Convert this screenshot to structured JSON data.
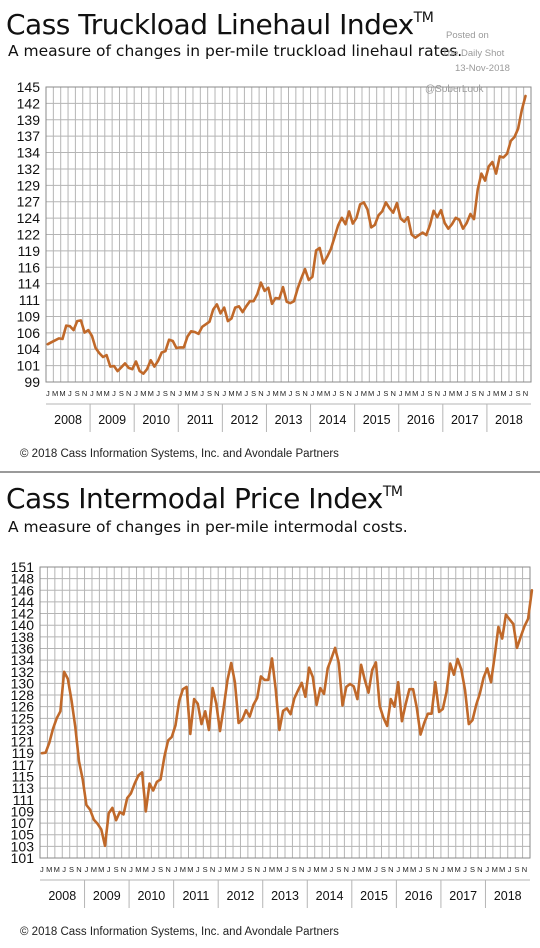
{
  "posted": {
    "line1": "Posted on",
    "line2": "The Daily Shot",
    "line3": "13-Nov-2018",
    "handle": "@SoberLook"
  },
  "colors": {
    "line": "#c0692a",
    "grid": "#b5b5b5",
    "frame": "#8a8a8a"
  },
  "chart_data": [
    {
      "type": "line",
      "title": "Cass Truckload Linehaul Index",
      "title_mark": "TM",
      "subtitle": "A measure of changes in per-mile truckload linehaul rates.",
      "source": "© 2018 Cass Information Systems, Inc. and Avondale Partners",
      "x_month_labels": [
        "J",
        "M",
        "M",
        "J",
        "S",
        "N"
      ],
      "years": [
        "2008",
        "2009",
        "2010",
        "2011",
        "2012",
        "2013",
        "2014",
        "2015",
        "2016",
        "2017",
        "2018"
      ],
      "x_start": "2008-01",
      "x_end": "2018-11",
      "ylim": [
        99,
        145
      ],
      "yticks": [
        "99",
        "101",
        "104",
        "106",
        "109",
        "111",
        "114",
        "116",
        "119",
        "122",
        "124",
        "127",
        "129",
        "132",
        "134",
        "137",
        "139",
        "142",
        "145"
      ],
      "series": [
        {
          "values": [
            104.9,
            105.2,
            105.5,
            105.8,
            105.7,
            107.8,
            107.7,
            107.1,
            108.5,
            108.6,
            106.7,
            107.1,
            106.2,
            104.3,
            103.5,
            102.9,
            103.2,
            101.4,
            101.5,
            100.7,
            101.3,
            101.9,
            101.2,
            101.0,
            102.2,
            100.7,
            100.3,
            101.0,
            102.4,
            101.4,
            102.3,
            103.6,
            103.8,
            105.6,
            105.4,
            104.3,
            104.4,
            104.4,
            106.1,
            106.9,
            106.8,
            106.5,
            107.6,
            108.0,
            108.4,
            110.3,
            111.1,
            109.7,
            110.6,
            108.5,
            108.9,
            110.6,
            110.8,
            109.9,
            110.8,
            111.6,
            111.6,
            112.7,
            114.5,
            113.2,
            113.7,
            111.2,
            112.1,
            112.0,
            113.8,
            111.5,
            111.3,
            111.6,
            113.6,
            115.2,
            116.6,
            114.9,
            115.4,
            119.5,
            119.9,
            117.5,
            118.5,
            119.7,
            121.5,
            123.4,
            124.6,
            123.6,
            125.6,
            123.7,
            124.6,
            126.7,
            127.0,
            125.9,
            123.1,
            123.5,
            125.0,
            125.6,
            127.0,
            126.1,
            125.4,
            126.9,
            124.5,
            124.0,
            124.7,
            122.0,
            121.5,
            121.9,
            122.3,
            121.9,
            123.5,
            125.7,
            124.7,
            125.8,
            123.8,
            122.9,
            123.6,
            124.6,
            124.3,
            122.9,
            123.8,
            125.2,
            124.4,
            129.0,
            131.5,
            130.4,
            132.6,
            133.3,
            131.5,
            134.2,
            134.0,
            134.6,
            136.6,
            137.2,
            138.5,
            141.4,
            143.6
          ]
        }
      ]
    },
    {
      "type": "line",
      "title": "Cass Intermodal Price Index",
      "title_mark": "TM",
      "subtitle": "A measure of changes in per-mile intermodal costs.",
      "source": "© 2018 Cass Information Systems, Inc. and Avondale Partners",
      "x_month_labels": [
        "J",
        "M",
        "M",
        "J",
        "S",
        "N"
      ],
      "years": [
        "2008",
        "2009",
        "2010",
        "2011",
        "2012",
        "2013",
        "2014",
        "2015",
        "2016",
        "2017",
        "2018"
      ],
      "x_start": "2008-01",
      "x_end": "2018-11",
      "ylim": [
        101,
        151
      ],
      "yticks": [
        "101",
        "103",
        "105",
        "107",
        "109",
        "111",
        "113",
        "115",
        "117",
        "119",
        "121",
        "123",
        "125",
        "126",
        "128",
        "130",
        "132",
        "134",
        "136",
        "138",
        "140",
        "142",
        "144",
        "146",
        "148",
        "151"
      ],
      "series": [
        {
          "values": [
            119.0,
            119.1,
            120.8,
            123.2,
            125.0,
            126.2,
            133.0,
            131.8,
            128.0,
            123.5,
            117.6,
            114.5,
            110.1,
            109.3,
            107.6,
            106.9,
            105.9,
            103.1,
            108.7,
            109.6,
            107.5,
            108.9,
            108.5,
            111.3,
            112.1,
            113.8,
            115.2,
            115.7,
            109.0,
            113.8,
            112.6,
            114.1,
            114.5,
            118.4,
            121.2,
            121.8,
            123.8,
            128.0,
            130.0,
            130.4,
            122.3,
            128.3,
            127.5,
            124.0,
            126.2,
            123.0,
            130.2,
            127.5,
            122.8,
            127.0,
            131.6,
            134.5,
            131.2,
            124.2,
            124.8,
            126.4,
            125.3,
            127.3,
            128.5,
            132.2,
            131.6,
            131.6,
            135.3,
            130.0,
            123.0,
            126.3,
            126.7,
            125.7,
            128.4,
            129.8,
            131.1,
            128.7,
            133.7,
            132.1,
            127.3,
            130.2,
            129.2,
            133.6,
            135.3,
            137.1,
            134.5,
            127.2,
            130.4,
            130.9,
            130.5,
            128.3,
            134.2,
            131.6,
            129.4,
            133.3,
            134.6,
            127.1,
            125.1,
            123.7,
            128.3,
            127.0,
            131.2,
            124.5,
            127.4,
            130.0,
            130.0,
            126.8,
            122.2,
            124.2,
            125.8,
            125.8,
            131.2,
            126.1,
            126.6,
            129.5,
            134.4,
            132.5,
            135.2,
            133.4,
            129.9,
            124.0,
            124.7,
            127.3,
            129.3,
            132.0,
            133.6,
            131.2,
            135.7,
            140.7,
            138.7,
            142.8,
            142.0,
            141.2,
            137.1,
            139.0,
            140.8,
            142.1,
            147.0
          ]
        }
      ]
    }
  ]
}
